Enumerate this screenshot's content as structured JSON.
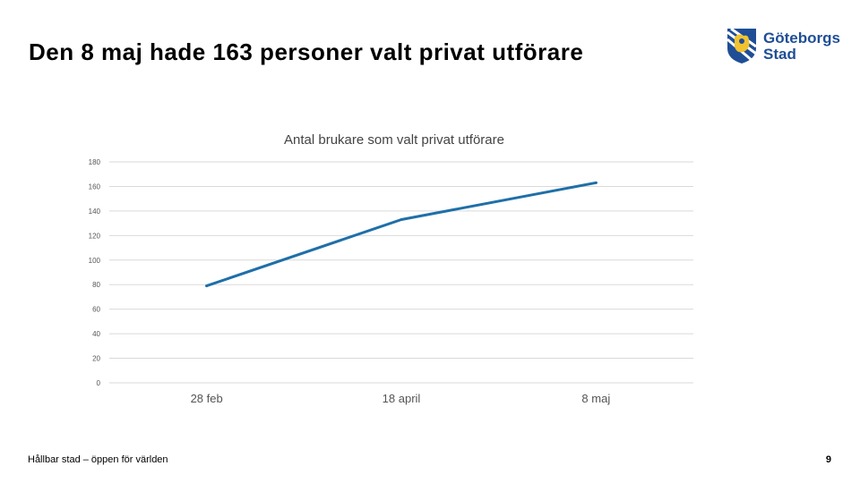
{
  "slide": {
    "title": "Den 8 maj hade 163 personer valt privat utförare",
    "footer": "Hållbar stad – öppen för världen",
    "page_number": "9"
  },
  "logo": {
    "line1": "Göteborgs",
    "line2": "Stad",
    "color": "#1f4e96",
    "icon": "coat-of-arms-icon"
  },
  "chart_data": {
    "type": "line",
    "title": "Antal brukare som valt privat utförare",
    "categories": [
      "28 feb",
      "18 april",
      "8 maj"
    ],
    "series": [
      {
        "values": [
          79,
          133,
          163
        ],
        "color": "#1f6fa8"
      }
    ],
    "ylim": [
      0,
      180
    ],
    "yticks": [
      0,
      20,
      40,
      60,
      80,
      100,
      120,
      140,
      160,
      180
    ],
    "grid": true,
    "legend": "none"
  }
}
